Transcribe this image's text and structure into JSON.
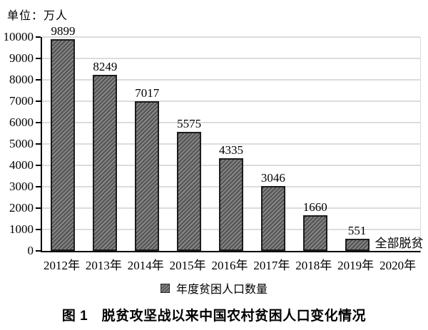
{
  "unit_label": "单位：万人",
  "chart_data": {
    "type": "bar",
    "title": "图 1　脱贫攻坚战以来中国农村贫困人口变化情况",
    "unit": "万人",
    "categories": [
      "2012年",
      "2013年",
      "2014年",
      "2015年",
      "2016年",
      "2017年",
      "2018年",
      "2019年",
      "2020年"
    ],
    "values": [
      9899,
      8249,
      7017,
      5575,
      4335,
      3046,
      1660,
      551,
      null
    ],
    "annotations": [
      {
        "category": "2020年",
        "text": "全部脱贫"
      }
    ],
    "ylim": [
      0,
      10000
    ],
    "ytick_step": 1000,
    "grid": true,
    "legend_entries": [
      "年度贫困人口数量"
    ],
    "legend_position": "bottom",
    "bar_fill_color": "#585858",
    "bar_hatch_color": "#8e8e8e",
    "bar_border_color": "#1c1c1c",
    "gridline_color": "#dcdcdc",
    "hatch": "diagonal-forward"
  },
  "legend": {
    "label": "年度贫困人口数量"
  },
  "caption": "图 1　脱贫攻坚战以来中国农村贫困人口变化情况"
}
